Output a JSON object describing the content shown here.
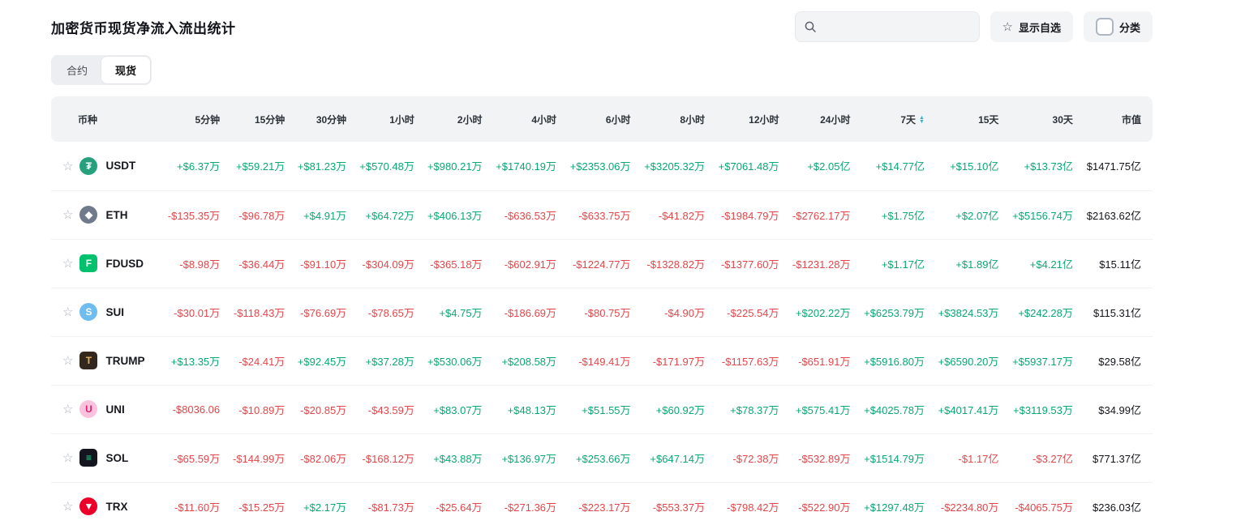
{
  "page": {
    "title": "加密货币现货净流入流出统计"
  },
  "toolbar": {
    "search_placeholder": "",
    "show_favorites_label": "显示自选",
    "category_label": "分类",
    "star_glyph": "☆"
  },
  "tabs": [
    {
      "id": "contracts",
      "label": "合约",
      "active": false
    },
    {
      "id": "spot",
      "label": "现货",
      "active": true
    }
  ],
  "colors": {
    "positive": "#09a873",
    "negative": "#e2464a"
  },
  "table": {
    "columns": [
      "币种",
      "5分钟",
      "15分钟",
      "30分钟",
      "1小时",
      "2小时",
      "4小时",
      "6小时",
      "8小时",
      "12小时",
      "24小时",
      "7天",
      "15天",
      "30天",
      "市值"
    ],
    "sorted_column": "7天",
    "rows": [
      {
        "coin": "USDT",
        "icon": {
          "shape": "circle",
          "bg": "#26a17b",
          "fg": "#ffffff",
          "glyph": "₮"
        },
        "values": [
          "+$6.37万",
          "+$59.21万",
          "+$81.23万",
          "+$570.48万",
          "+$980.21万",
          "+$1740.19万",
          "+$2353.06万",
          "+$3205.32万",
          "+$7061.48万",
          "+$2.05亿",
          "+$14.77亿",
          "+$15.10亿",
          "+$13.73亿"
        ],
        "market_cap": "$1471.75亿"
      },
      {
        "coin": "ETH",
        "icon": {
          "shape": "circle",
          "bg": "#6f7b8b",
          "fg": "#ffffff",
          "glyph": "◆"
        },
        "values": [
          "-$135.35万",
          "-$96.78万",
          "+$4.91万",
          "+$64.72万",
          "+$406.13万",
          "-$636.53万",
          "-$633.75万",
          "-$41.82万",
          "-$1984.79万",
          "-$2762.17万",
          "+$1.75亿",
          "+$2.07亿",
          "+$5156.74万"
        ],
        "market_cap": "$2163.62亿"
      },
      {
        "coin": "FDUSD",
        "icon": {
          "shape": "square",
          "bg": "#00c16e",
          "fg": "#ffffff",
          "glyph": "F"
        },
        "values": [
          "-$8.98万",
          "-$36.44万",
          "-$91.10万",
          "-$304.09万",
          "-$365.18万",
          "-$602.91万",
          "-$1224.77万",
          "-$1328.82万",
          "-$1377.60万",
          "-$1231.28万",
          "+$1.17亿",
          "+$1.89亿",
          "+$4.21亿"
        ],
        "market_cap": "$15.11亿"
      },
      {
        "coin": "SUI",
        "icon": {
          "shape": "circle",
          "bg": "#6fbcf0",
          "fg": "#ffffff",
          "glyph": "S"
        },
        "values": [
          "-$30.01万",
          "-$118.43万",
          "-$76.69万",
          "-$78.65万",
          "+$4.75万",
          "-$186.69万",
          "-$80.75万",
          "-$4.90万",
          "-$225.54万",
          "+$202.22万",
          "+$6253.79万",
          "+$3824.53万",
          "+$242.28万"
        ],
        "market_cap": "$115.31亿"
      },
      {
        "coin": "TRUMP",
        "icon": {
          "shape": "square",
          "bg": "#32281e",
          "fg": "#e0b15e",
          "glyph": "T"
        },
        "values": [
          "+$13.35万",
          "-$24.41万",
          "+$92.45万",
          "+$37.28万",
          "+$530.06万",
          "+$208.58万",
          "-$149.41万",
          "-$171.97万",
          "-$1157.63万",
          "-$651.91万",
          "+$5916.80万",
          "+$6590.20万",
          "+$5937.17万"
        ],
        "market_cap": "$29.58亿"
      },
      {
        "coin": "UNI",
        "icon": {
          "shape": "circle",
          "bg": "#f9c2dd",
          "fg": "#d6246e",
          "glyph": "U"
        },
        "values": [
          "-$8036.06",
          "-$10.89万",
          "-$20.85万",
          "-$43.59万",
          "+$83.07万",
          "+$48.13万",
          "+$51.55万",
          "+$60.92万",
          "+$78.37万",
          "+$575.41万",
          "+$4025.78万",
          "+$4017.41万",
          "+$3119.53万"
        ],
        "market_cap": "$34.99亿"
      },
      {
        "coin": "SOL",
        "icon": {
          "shape": "square",
          "bg": "#15151f",
          "fg": "#14f195",
          "glyph": "≡"
        },
        "values": [
          "-$65.59万",
          "-$144.99万",
          "-$82.06万",
          "-$168.12万",
          "+$43.88万",
          "+$136.97万",
          "+$253.66万",
          "+$647.14万",
          "-$72.38万",
          "-$532.89万",
          "+$1514.79万",
          "-$1.17亿",
          "-$3.27亿"
        ],
        "market_cap": "$771.37亿"
      },
      {
        "coin": "TRX",
        "icon": {
          "shape": "circle",
          "bg": "#eb0029",
          "fg": "#ffffff",
          "glyph": "▼"
        },
        "values": [
          "-$11.60万",
          "-$15.25万",
          "+$2.17万",
          "-$81.73万",
          "-$25.64万",
          "-$271.36万",
          "-$223.17万",
          "-$553.37万",
          "-$798.42万",
          "-$522.90万",
          "+$1297.48万",
          "-$2234.80万",
          "-$4065.75万"
        ],
        "market_cap": "$236.03亿"
      }
    ]
  }
}
